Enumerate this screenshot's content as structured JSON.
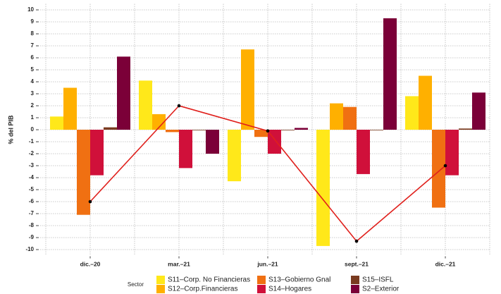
{
  "chart_data": {
    "type": "bar",
    "y_label": "% del PIB",
    "legend_title": "Sector",
    "categories": [
      "dic.–20",
      "mar.–21",
      "jun.–21",
      "sept.–21",
      "dic.–21"
    ],
    "series": [
      {
        "name": "S11–Corp. No Financieras",
        "color": "#ffe81a",
        "values": [
          1.1,
          4.1,
          -4.3,
          -9.7,
          2.8
        ]
      },
      {
        "name": "S12–Corp.Financieras",
        "color": "#ffb000",
        "values": [
          3.5,
          1.3,
          6.7,
          2.2,
          4.5
        ]
      },
      {
        "name": "S13–Gobierno Gnal",
        "color": "#f07012",
        "values": [
          -7.1,
          -0.2,
          -0.6,
          1.9,
          -6.5
        ]
      },
      {
        "name": "S14–Hogares",
        "color": "#d0103a",
        "values": [
          -3.8,
          -3.2,
          -2.0,
          -3.7,
          -3.8
        ]
      },
      {
        "name": "S15–ISFL",
        "color": "#7a3b20",
        "values": [
          0.2,
          0,
          0,
          0,
          0.1
        ]
      },
      {
        "name": "S2–Exterior",
        "color": "#7b0038",
        "values": [
          6.1,
          -2.0,
          0.15,
          9.3,
          3.1
        ]
      }
    ],
    "line_series": {
      "color": "#e0201c",
      "marker_color": "#000000",
      "values": [
        -6.0,
        2.0,
        -0.1,
        -9.3,
        -3.0
      ]
    },
    "ylim": [
      -10.5,
      10.5
    ],
    "yticks": [
      -10,
      -9,
      -8,
      -7,
      -6,
      -5,
      -4,
      -3,
      -2,
      -1,
      0,
      1,
      2,
      3,
      4,
      5,
      6,
      7,
      8,
      9,
      10
    ],
    "grid": true
  }
}
